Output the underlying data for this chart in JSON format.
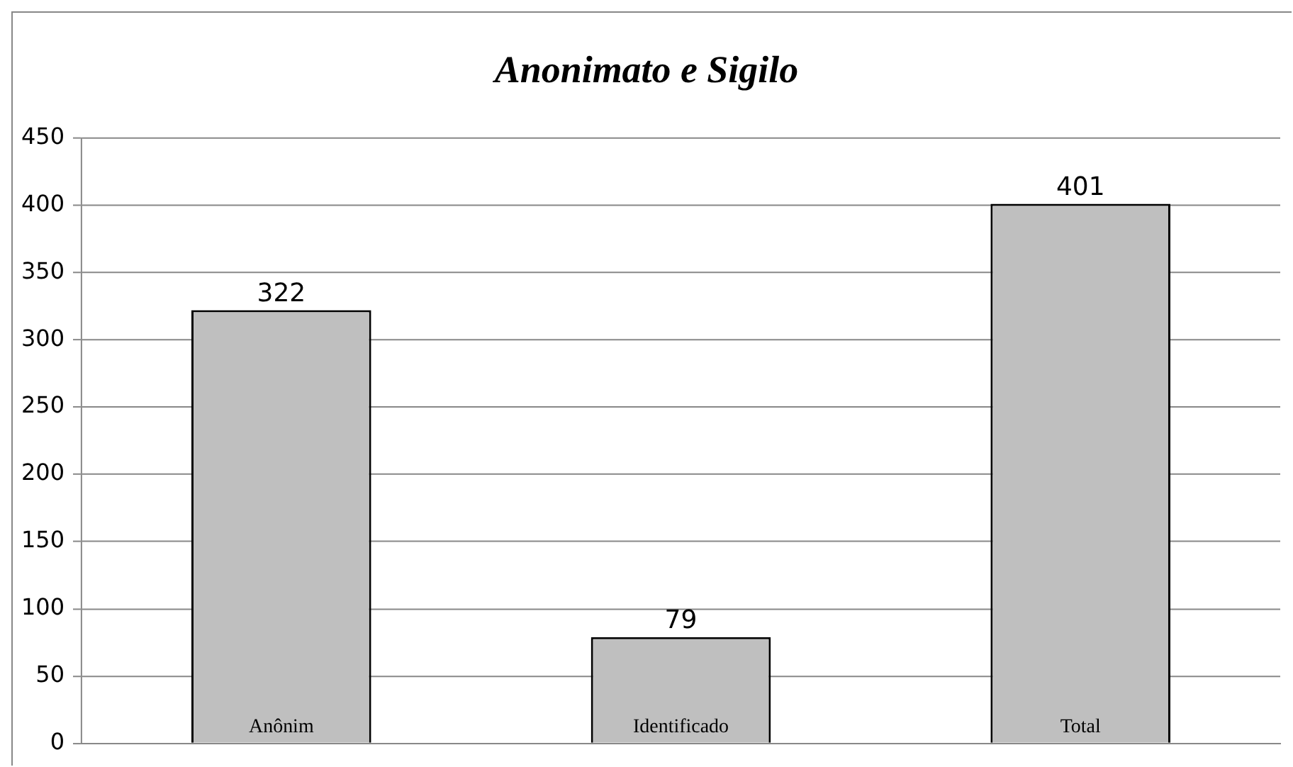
{
  "chart_data": {
    "type": "bar",
    "title": "Anonimato e Sigilo",
    "categories": [
      "Anônim",
      "Identificado",
      "Total"
    ],
    "values": [
      322,
      79,
      401
    ],
    "color": "#bfbfbf",
    "ylim": [
      0,
      450
    ],
    "yticks": [
      0,
      50,
      100,
      150,
      200,
      250,
      300,
      350,
      400,
      450
    ],
    "grid": "y",
    "data_labels": true
  }
}
